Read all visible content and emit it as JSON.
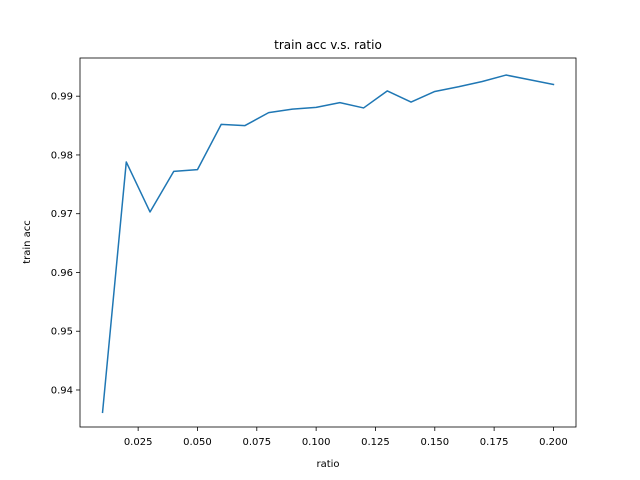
{
  "chart_data": {
    "type": "line",
    "title": "train acc v.s. ratio",
    "xlabel": "ratio",
    "ylabel": "train acc",
    "xlim": [
      0.0005,
      0.2095
    ],
    "ylim": [
      0.9337,
      0.9965
    ],
    "xticks": [
      0.025,
      0.05,
      0.075,
      0.1,
      0.125,
      0.15,
      0.175,
      0.2
    ],
    "xtick_labels": [
      "0.025",
      "0.050",
      "0.075",
      "0.100",
      "0.125",
      "0.150",
      "0.175",
      "0.200"
    ],
    "yticks": [
      0.94,
      0.95,
      0.96,
      0.97,
      0.98,
      0.99
    ],
    "ytick_labels": [
      "0.94",
      "0.95",
      "0.96",
      "0.97",
      "0.98",
      "0.99"
    ],
    "grid": false,
    "series": [
      {
        "color": "#1f77b4",
        "x": [
          0.01,
          0.02,
          0.03,
          0.04,
          0.05,
          0.06,
          0.07,
          0.08,
          0.09,
          0.1,
          0.11,
          0.12,
          0.13,
          0.14,
          0.15,
          0.16,
          0.17,
          0.18,
          0.19,
          0.2
        ],
        "y": [
          0.9362,
          0.9788,
          0.9703,
          0.9772,
          0.9775,
          0.9852,
          0.985,
          0.9872,
          0.9878,
          0.9881,
          0.9889,
          0.988,
          0.9909,
          0.989,
          0.9908,
          0.9916,
          0.9925,
          0.9936,
          0.9928,
          0.992
        ]
      }
    ]
  }
}
